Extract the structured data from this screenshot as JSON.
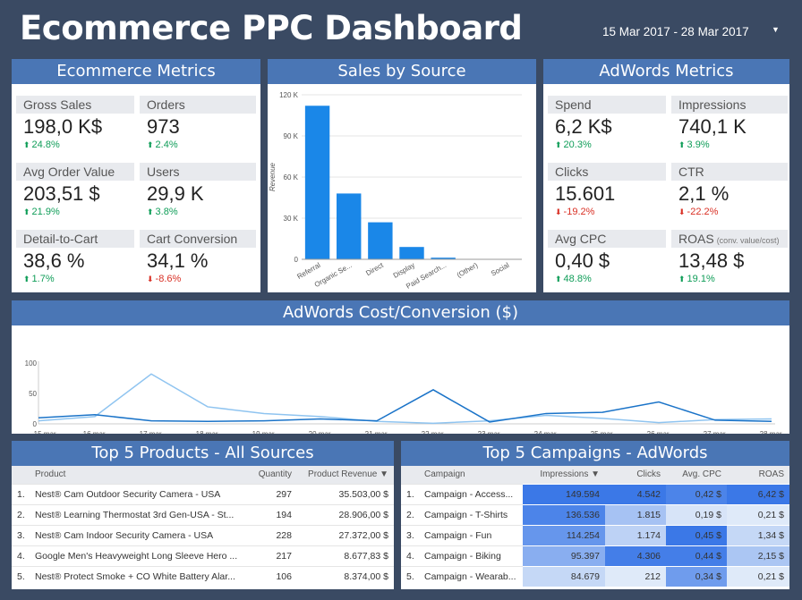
{
  "header": {
    "title": "Ecommerce PPC Dashboard",
    "date_range": "15 Mar 2017 - 28 Mar 2017"
  },
  "ecommerce": {
    "title": "Ecommerce Metrics",
    "kpis": [
      {
        "label": "Gross Sales",
        "value": "198,0 K$",
        "delta": "24.8%",
        "dir": "up"
      },
      {
        "label": "Orders",
        "value": "973",
        "delta": "2.4%",
        "dir": "up"
      },
      {
        "label": "Avg Order Value",
        "value": "203,51 $",
        "delta": "21.9%",
        "dir": "up"
      },
      {
        "label": "Users",
        "value": "29,9 K",
        "delta": "3.8%",
        "dir": "up"
      },
      {
        "label": "Detail-to-Cart",
        "value": "38,6 %",
        "delta": "1.7%",
        "dir": "up"
      },
      {
        "label": "Cart Conversion",
        "value": "34,1 %",
        "delta": "-8.6%",
        "dir": "down"
      }
    ]
  },
  "adwords": {
    "title": "AdWords Metrics",
    "kpis": [
      {
        "label": "Spend",
        "value": "6,2 K$",
        "delta": "20.3%",
        "dir": "up"
      },
      {
        "label": "Impressions",
        "value": "740,1 K",
        "delta": "3.9%",
        "dir": "up"
      },
      {
        "label": "Clicks",
        "value": "15.601",
        "delta": "-19.2%",
        "dir": "down"
      },
      {
        "label": "CTR",
        "value": "2,1 %",
        "delta": "-22.2%",
        "dir": "down"
      },
      {
        "label": "Avg CPC",
        "value": "0,40 $",
        "delta": "48.8%",
        "dir": "up"
      },
      {
        "label": "ROAS",
        "sublabel": "(conv. value/cost)",
        "value": "13,48 $",
        "delta": "19.1%",
        "dir": "up"
      }
    ]
  },
  "sales_by_source": {
    "title": "Sales by Source",
    "chart_data": {
      "type": "bar",
      "categories": [
        "Referral",
        "Organic Se...",
        "Direct",
        "Display",
        "Paid Search...",
        "(Other)",
        "Social"
      ],
      "values": [
        112000,
        48000,
        27000,
        9000,
        1200,
        300,
        200
      ],
      "ylabel": "Revenue",
      "ylim": [
        0,
        120000
      ],
      "yticks": [
        "120 K",
        "90 K",
        "60 K",
        "30 K",
        "0"
      ],
      "color": "#1a87e8"
    }
  },
  "cost_conversion": {
    "title": "AdWords Cost/Conversion ($)",
    "chart_data": {
      "type": "line",
      "x": [
        "15 mar.",
        "16 mar.",
        "17 mar.",
        "18 mar.",
        "19 mar.",
        "20 mar.",
        "21 mar.",
        "22 mar.",
        "23 mar.",
        "24 mar.",
        "25 mar.",
        "26 mar.",
        "27 mar.",
        "28 mar."
      ],
      "series": [
        {
          "values": [
            10,
            15,
            5,
            4,
            5,
            8,
            5,
            56,
            3,
            17,
            19,
            36,
            6,
            4
          ],
          "color": "#1a73c8"
        },
        {
          "values": [
            5,
            12,
            82,
            28,
            17,
            12,
            4,
            1,
            5,
            14,
            9,
            2,
            7,
            8
          ],
          "color": "#8fc4f0"
        }
      ],
      "ylim": [
        0,
        100
      ],
      "yticks": [
        "100",
        "50",
        "0"
      ]
    }
  },
  "top_products": {
    "title": "Top 5 Products - All Sources",
    "columns": [
      "Product",
      "Quantity",
      "Product Revenue ▼"
    ],
    "rows": [
      {
        "n": "1.",
        "product": "Nest® Cam Outdoor Security Camera - USA",
        "qty": "297",
        "rev": "35.503,00 $"
      },
      {
        "n": "2.",
        "product": "Nest® Learning Thermostat 3rd Gen-USA - St...",
        "qty": "194",
        "rev": "28.906,00 $"
      },
      {
        "n": "3.",
        "product": "Nest® Cam Indoor Security Camera - USA",
        "qty": "228",
        "rev": "27.372,00 $"
      },
      {
        "n": "4.",
        "product": "Google Men's Heavyweight Long Sleeve Hero ...",
        "qty": "217",
        "rev": "8.677,83 $"
      },
      {
        "n": "5.",
        "product": "Nest® Protect Smoke + CO White Battery Alar...",
        "qty": "106",
        "rev": "8.374,00 $"
      }
    ]
  },
  "top_campaigns": {
    "title": "Top 5 Campaigns - AdWords",
    "columns": [
      "Campaign",
      "Impressions ▼",
      "Clicks",
      "Avg. CPC",
      "ROAS"
    ],
    "rows": [
      {
        "n": "1.",
        "campaign": "Campaign - Access...",
        "impr": "149.594",
        "clicks": "4.542",
        "cpc": "0,42 $",
        "roas": "6,42 $"
      },
      {
        "n": "2.",
        "campaign": "Campaign - T-Shirts",
        "impr": "136.536",
        "clicks": "1.815",
        "cpc": "0,19 $",
        "roas": "0,21 $"
      },
      {
        "n": "3.",
        "campaign": "Campaign - Fun",
        "impr": "114.254",
        "clicks": "1.174",
        "cpc": "0,45 $",
        "roas": "1,34 $"
      },
      {
        "n": "4.",
        "campaign": "Campaign - Biking",
        "impr": "95.397",
        "clicks": "4.306",
        "cpc": "0,44 $",
        "roas": "2,15 $"
      },
      {
        "n": "5.",
        "campaign": "Campaign - Wearab...",
        "impr": "84.679",
        "clicks": "212",
        "cpc": "0,34 $",
        "roas": "0,21 $"
      }
    ],
    "heat": {
      "impr": [
        1.0,
        0.9,
        0.75,
        0.55,
        0.2
      ],
      "clicks": [
        1.0,
        0.38,
        0.25,
        0.95,
        0.05
      ],
      "cpc": [
        0.9,
        0.1,
        1.0,
        0.95,
        0.7
      ],
      "roas": [
        1.0,
        0.05,
        0.2,
        0.35,
        0.05
      ]
    }
  }
}
